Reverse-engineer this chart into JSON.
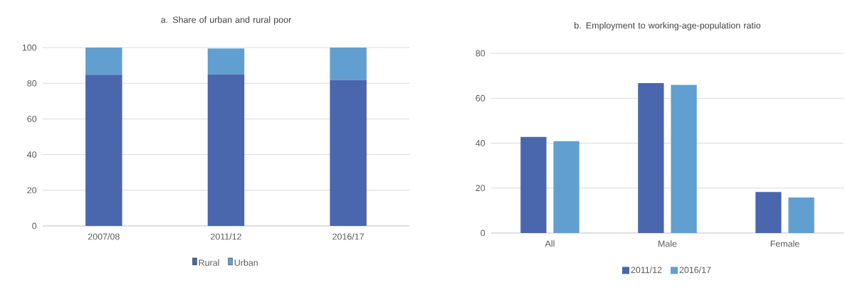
{
  "chart_data": [
    {
      "type": "bar",
      "title": "a. Share of urban and rural poor",
      "stacked": true,
      "categories": [
        "2007/08",
        "2011/12",
        "2016/17"
      ],
      "series": [
        {
          "name": "Rural",
          "color": "#4a66ac",
          "values": [
            84.8,
            85.1,
            81.9
          ]
        },
        {
          "name": "Urban",
          "color": "#629fd1",
          "values": [
            15.2,
            14.4,
            18.1
          ]
        }
      ],
      "ylim": [
        0,
        100
      ],
      "yticks": [
        0,
        20,
        40,
        60,
        80,
        100
      ],
      "grid": "y",
      "legend": "bottom"
    },
    {
      "type": "bar",
      "title": "b. Employment to working-age-population ratio",
      "categories": [
        "All",
        "Male",
        "Female"
      ],
      "series": [
        {
          "name": "2011/12",
          "color": "#4a66ac",
          "values": [
            42.8,
            66.7,
            18.3
          ]
        },
        {
          "name": "2016/17",
          "color": "#629fd1",
          "values": [
            40.9,
            65.9,
            15.8
          ]
        }
      ],
      "ylim": [
        0,
        80
      ],
      "yticks": [
        0,
        20,
        40,
        60,
        80
      ],
      "grid": "y",
      "legend": "bottom"
    }
  ]
}
